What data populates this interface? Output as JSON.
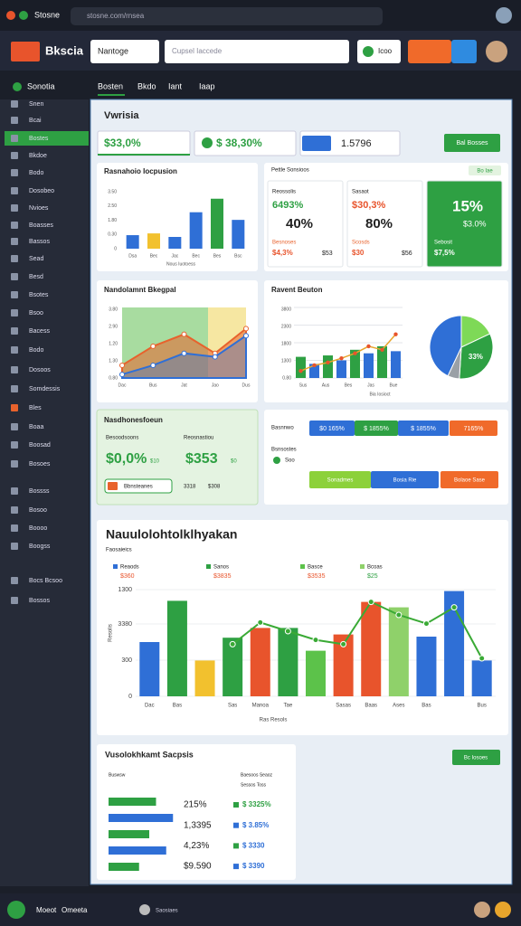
{
  "browser": {
    "tab": "Stosne",
    "url": "stosne.com/rnsea"
  },
  "header": {
    "logo": "Bkscia",
    "search1": "Nantoge",
    "search2": "Cupsel Iaccede",
    "button": "Icoo"
  },
  "nav": {
    "title": "Sonotia",
    "tabs": [
      "Bosten",
      "Bkdo",
      "Iant",
      "Iaap"
    ]
  },
  "sidebar": {
    "items": [
      "Snen",
      "Bcai",
      "Bostes",
      "Bkdoe",
      "Bodo",
      "Dosobeo",
      "Nvioes",
      "Boasses",
      "Bassos",
      "Sead",
      "Besd",
      "Bsotes",
      "Bsoo",
      "Bacess",
      "Bodo",
      "Dosoos",
      "Somdessis",
      "Bles",
      "Boaa",
      "Boosad",
      "Bosoes",
      "Bossss",
      "Bosoo",
      "Boooo",
      "Boogss",
      "Bocs Bcsoo",
      "Bossos"
    ]
  },
  "main": {
    "title": "Vwrisia",
    "kpis": [
      "$33,0%",
      "$ 38,30%",
      "1.5796"
    ],
    "kpi_button": "Bal Bosses"
  },
  "card1": {
    "title": "Rasnahoio Iocpusion",
    "y_labels": [
      "3.50",
      "2.50",
      "1.80",
      "0.30",
      "0"
    ],
    "categories": [
      "Dsa",
      "Bec",
      "Jac",
      "Bec",
      "Bes",
      "Bsc"
    ],
    "values": [
      23,
      26,
      20,
      62,
      85,
      49
    ],
    "colors": [
      "#2f6fd6",
      "#f2c12e",
      "#2f6fd6",
      "#2f6fd6",
      "#2ea043",
      "#2f6fd6"
    ],
    "ylim": [
      0,
      100
    ],
    "footer": "Nous Iuotoess"
  },
  "card2": {
    "title": "Pettle Sonsioos",
    "badge": "Bo Iae",
    "tiles": [
      {
        "label": "Reossolis",
        "value": "6493%",
        "value2": "40%",
        "foot": "Besnoses",
        "foot2": "$4,3%",
        "foot3": "$53"
      },
      {
        "label": "Sasaot",
        "value": "$30,3%",
        "value2": "80%",
        "foot": "Scosds",
        "foot2": "$30",
        "foot3": "$56"
      },
      {
        "value": "15%",
        "value2": "$3.0%",
        "foot": "Sebosit",
        "foot2": "$7,5%"
      }
    ]
  },
  "card3": {
    "title": "Nandolamnt Bkegpal",
    "y_labels": [
      "3.80",
      "2.90",
      "1.20",
      "1.30",
      "0.80"
    ],
    "categories": [
      "Dac",
      "Bus",
      "Jat",
      "Jao",
      "Dus"
    ],
    "ylim": [
      0,
      100
    ],
    "series": [
      {
        "color": "#e8622c",
        "values": [
          18,
          45,
          62,
          35,
          70
        ]
      },
      {
        "color": "#2f6fd6",
        "values": [
          5,
          18,
          35,
          30,
          60
        ]
      }
    ]
  },
  "card4": {
    "title": "Ravent Beuton",
    "y_labels": [
      "3800",
      "2300",
      "1800",
      "1300",
      "0.80"
    ],
    "x_labels": [
      "Sus",
      "Aus",
      "Bes",
      "Jas",
      "Bue"
    ],
    "ylim": [
      0,
      100
    ],
    "bars": {
      "values": [
        30,
        20,
        32,
        25,
        40,
        35,
        45,
        38
      ],
      "colors": [
        "#2ea043",
        "#2f6fd6",
        "#2ea043",
        "#2f6fd6",
        "#2ea043",
        "#2f6fd6",
        "#2ea043",
        "#2f6fd6"
      ]
    },
    "line": {
      "color": "#e8a52c",
      "values": [
        10,
        18,
        22,
        28,
        35,
        45,
        40,
        62
      ]
    },
    "footer": "Bia Iosioct",
    "pie": {
      "values": [
        18,
        33,
        6,
        43
      ],
      "colors": [
        "#7ed957",
        "#2ea043",
        "#9aa0a6",
        "#2f6fd6"
      ],
      "value_labels": [
        null,
        "33%",
        null,
        null
      ]
    }
  },
  "card5": {
    "title": "Nasdhonesfoeun",
    "label1": "Besoodsoons",
    "label2": "Reosnastiou",
    "value1": "$0,0%",
    "value2": "$353",
    "badge1": "$10",
    "badge2": "$0",
    "button": "Bbnsteanes",
    "foot1": "3318",
    "foot2": "$308"
  },
  "card6": {
    "label1": "Basnnwo",
    "pills1": [
      "$0 165%",
      "$ 1855%",
      "$ 1855%",
      "7165%"
    ],
    "label2": "Bsnsostes",
    "label3": "Soo",
    "pills2": [
      "Sonadmes",
      "Bosia Rie",
      "Bolaoe Sase"
    ]
  },
  "big": {
    "title": "Nauulolohtolklhyakan",
    "subtitle": "Faosaieics",
    "legend": [
      {
        "name": "Reaods",
        "value": "$360"
      },
      {
        "name": "Sanos",
        "value": "$3835"
      },
      {
        "name": "Basce",
        "value": "$3535"
      },
      {
        "name": "Bcoas",
        "value": "$25"
      }
    ],
    "y_labels": [
      "1300",
      "3380",
      "300",
      "0"
    ],
    "y_title": "Resolis",
    "x_title": "Ras Resols",
    "ylim": [
      0,
      100
    ],
    "categories": [
      "Dac",
      "Bas",
      null,
      "Sas",
      "Manoa",
      "Tae",
      null,
      "Sasas",
      "Baas",
      "Ases",
      "Bas",
      null,
      "Bus"
    ],
    "bars": {
      "values": [
        50,
        88,
        33,
        54,
        63,
        63,
        42,
        57,
        87,
        82,
        55,
        97,
        33
      ],
      "colors": [
        "#2f6fd6",
        "#2ea043",
        "#f2c12e",
        "#2ea043",
        "#e8542c",
        "#2ea043",
        "#5cc24a",
        "#e8542c",
        "#e8542c",
        "#8fd16a",
        "#2f6fd6",
        "#2f6fd6",
        "#2f6fd6"
      ]
    },
    "line": {
      "color": "#3aaa35",
      "values": [
        null,
        null,
        null,
        48,
        68,
        60,
        52,
        48,
        87,
        75,
        67,
        82,
        35
      ]
    }
  },
  "bottom": {
    "title": "Vusolokhkamt Sacpsis",
    "left_label": "Buswsw",
    "button": "Bc Iosoes",
    "head1": "Baesoos Seaoz",
    "head2": "Sessos Toss",
    "rows": [
      {
        "left": "215%",
        "right": "$ 3325%"
      },
      {
        "left": "1,3395",
        "right": "$ 3.85%"
      },
      {
        "left": "4,23%",
        "right": "$ 3330"
      },
      {
        "left": "$9.590",
        "right": "$ 3390"
      }
    ],
    "bars": {
      "values": [
        70,
        95,
        60,
        85,
        45
      ],
      "colors": [
        "#2ea043",
        "#2f6fd6",
        "#2ea043",
        "#2f6fd6",
        "#2ea043"
      ],
      "xlim": [
        0,
        100
      ]
    }
  },
  "footer": {
    "left": "Moeot",
    "left2": "Omeeta",
    "center": "Saosiaes"
  }
}
